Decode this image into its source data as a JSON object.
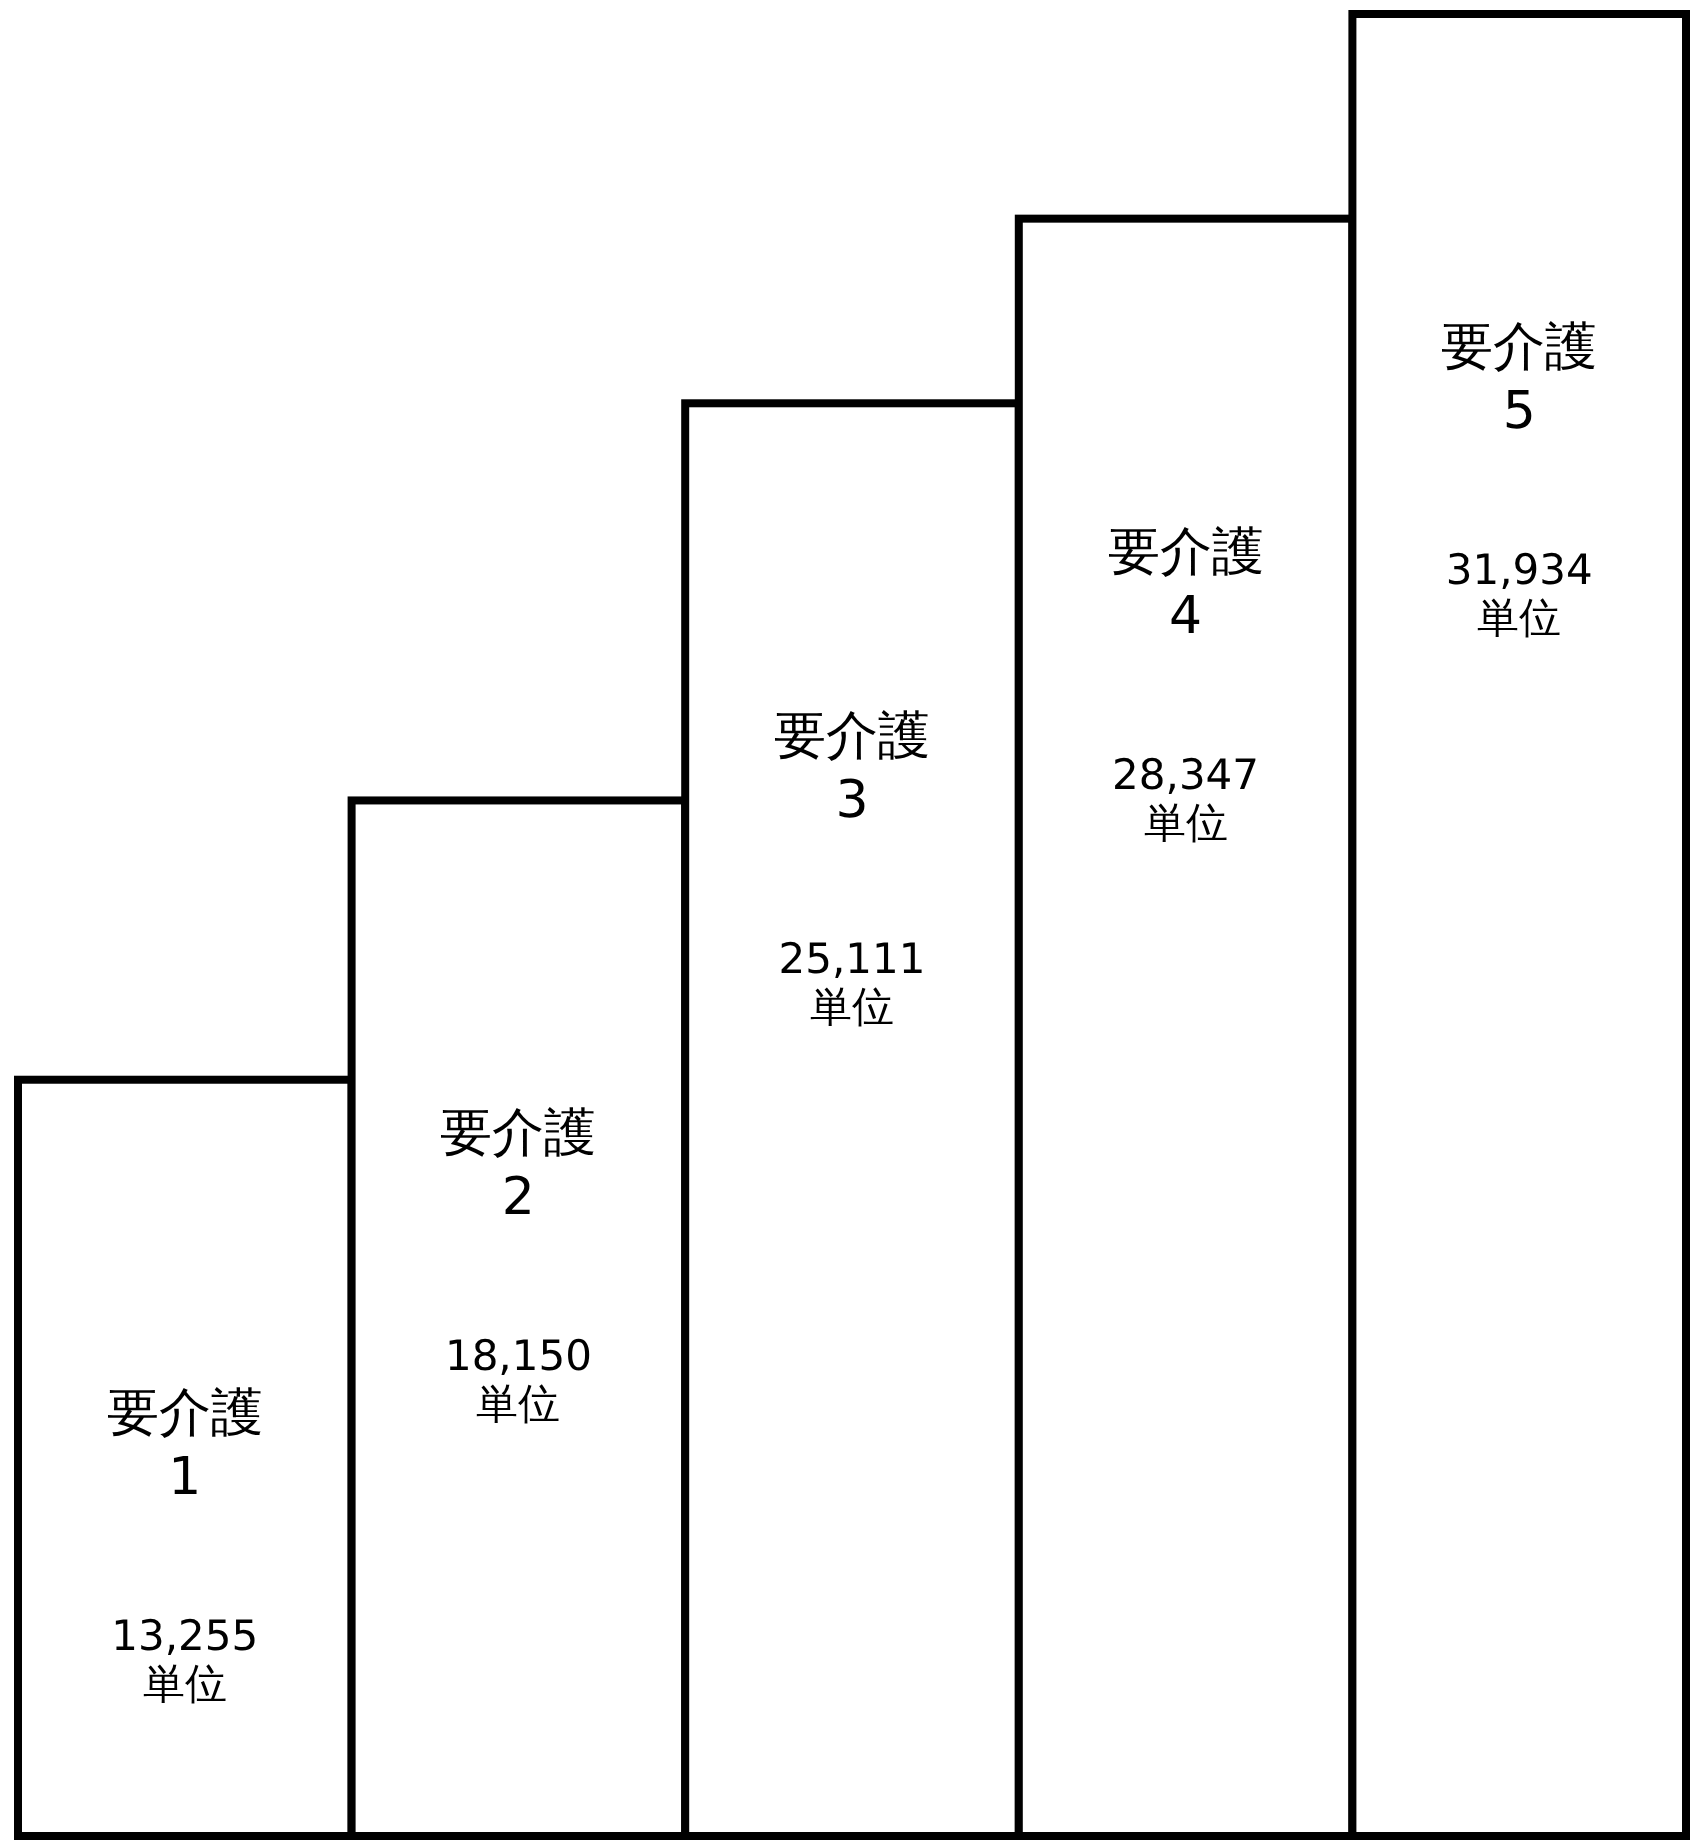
{
  "chart_data": {
    "type": "bar",
    "categories": [
      "要介護\n1",
      "要介護\n2",
      "要介護\n3",
      "要介護\n4",
      "要介護\n5"
    ],
    "values": [
      13255,
      18150,
      25111,
      28347,
      31934
    ],
    "value_labels": [
      "13,255\n単位",
      "18,150\n単位",
      "25,111\n単位",
      "28,347\n単位",
      "31,934\n単位"
    ],
    "color": "#ffffff"
  }
}
